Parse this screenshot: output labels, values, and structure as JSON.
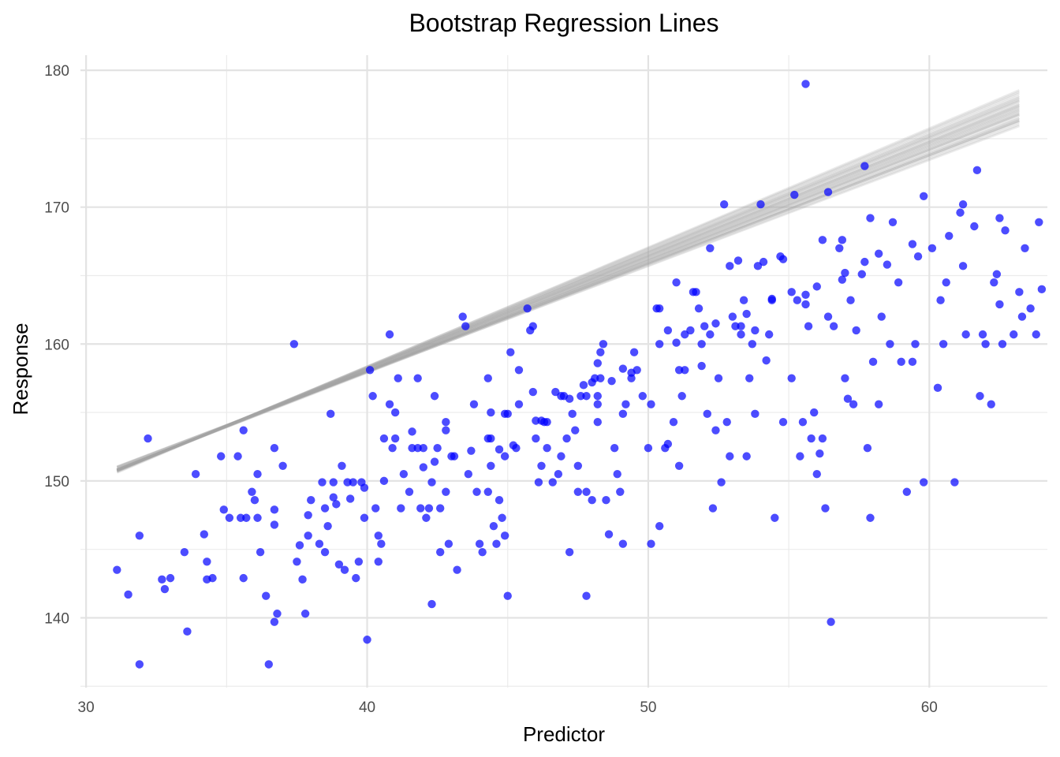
{
  "chart_data": {
    "type": "scatter",
    "title": "Bootstrap Regression Lines",
    "xlabel": "Predictor",
    "ylabel": "Response",
    "xlim": [
      29.8,
      64.2
    ],
    "ylim": [
      134.9,
      181.1
    ],
    "x_ticks": [
      30,
      40,
      50,
      60
    ],
    "y_ticks": [
      140,
      150,
      160,
      170,
      180
    ],
    "x_tick_labels": [
      "30",
      "40",
      "50",
      "60"
    ],
    "y_tick_labels": [
      "140",
      "150",
      "160",
      "170",
      "180"
    ],
    "grid": true,
    "point_color": "#0000ff",
    "line_color": "#a6a6a6",
    "points": [
      [
        31.1,
        143.5
      ],
      [
        31.5,
        141.7
      ],
      [
        31.9,
        146.0
      ],
      [
        31.9,
        136.6
      ],
      [
        32.2,
        153.1
      ],
      [
        32.7,
        142.8
      ],
      [
        32.8,
        142.1
      ],
      [
        33.0,
        142.9
      ],
      [
        33.5,
        144.8
      ],
      [
        33.6,
        139.0
      ],
      [
        33.9,
        150.5
      ],
      [
        34.2,
        146.1
      ],
      [
        34.3,
        144.1
      ],
      [
        34.3,
        142.8
      ],
      [
        34.5,
        142.9
      ],
      [
        34.8,
        151.8
      ],
      [
        34.9,
        147.9
      ],
      [
        35.1,
        147.3
      ],
      [
        35.4,
        151.8
      ],
      [
        35.5,
        147.3
      ],
      [
        35.6,
        153.7
      ],
      [
        35.6,
        142.9
      ],
      [
        35.7,
        147.3
      ],
      [
        35.9,
        149.2
      ],
      [
        36.0,
        148.6
      ],
      [
        36.1,
        150.5
      ],
      [
        36.1,
        147.3
      ],
      [
        36.2,
        144.8
      ],
      [
        36.4,
        141.6
      ],
      [
        36.5,
        136.6
      ],
      [
        36.7,
        147.9
      ],
      [
        36.7,
        152.4
      ],
      [
        36.7,
        139.7
      ],
      [
        36.8,
        140.3
      ],
      [
        37.0,
        151.1
      ],
      [
        37.4,
        160.0
      ],
      [
        37.5,
        144.1
      ],
      [
        37.7,
        142.8
      ],
      [
        37.8,
        140.3
      ],
      [
        37.9,
        146.0
      ],
      [
        38.0,
        148.6
      ],
      [
        38.3,
        145.4
      ],
      [
        38.4,
        149.9
      ],
      [
        38.5,
        144.8
      ],
      [
        38.6,
        146.7
      ],
      [
        38.7,
        154.9
      ],
      [
        38.8,
        149.9
      ],
      [
        38.8,
        148.8
      ],
      [
        39.0,
        143.9
      ],
      [
        39.1,
        151.1
      ],
      [
        39.2,
        143.5
      ],
      [
        39.3,
        149.9
      ],
      [
        39.5,
        149.9
      ],
      [
        39.6,
        142.9
      ],
      [
        39.7,
        144.1
      ],
      [
        39.8,
        149.9
      ],
      [
        39.9,
        147.3
      ],
      [
        40.0,
        138.4
      ],
      [
        40.1,
        158.1
      ],
      [
        40.2,
        156.2
      ],
      [
        40.3,
        148.0
      ],
      [
        40.4,
        146.0
      ],
      [
        40.4,
        144.1
      ],
      [
        40.5,
        145.4
      ],
      [
        40.6,
        153.1
      ],
      [
        40.8,
        155.6
      ],
      [
        40.8,
        160.7
      ],
      [
        41.0,
        155.0
      ],
      [
        41.0,
        153.1
      ],
      [
        41.1,
        157.5
      ],
      [
        41.2,
        148.0
      ],
      [
        41.5,
        149.2
      ],
      [
        41.6,
        153.6
      ],
      [
        41.8,
        157.5
      ],
      [
        41.9,
        148.0
      ],
      [
        42.0,
        152.4
      ],
      [
        42.1,
        147.3
      ],
      [
        42.2,
        148.0
      ],
      [
        42.3,
        149.9
      ],
      [
        42.3,
        141.0
      ],
      [
        42.4,
        156.2
      ],
      [
        42.5,
        152.4
      ],
      [
        42.6,
        144.8
      ],
      [
        42.6,
        148.0
      ],
      [
        42.8,
        154.3
      ],
      [
        42.8,
        153.7
      ],
      [
        42.8,
        149.2
      ],
      [
        42.9,
        145.4
      ],
      [
        43.2,
        143.5
      ],
      [
        43.4,
        162.0
      ],
      [
        43.5,
        161.3
      ],
      [
        43.6,
        150.5
      ],
      [
        43.8,
        155.6
      ],
      [
        43.9,
        149.2
      ],
      [
        44.0,
        145.4
      ],
      [
        44.1,
        144.8
      ],
      [
        44.3,
        157.5
      ],
      [
        44.3,
        153.1
      ],
      [
        44.3,
        149.2
      ],
      [
        44.4,
        151.1
      ],
      [
        44.5,
        146.7
      ],
      [
        44.6,
        145.4
      ],
      [
        44.7,
        148.6
      ],
      [
        44.8,
        147.3
      ],
      [
        44.9,
        151.8
      ],
      [
        44.9,
        146.0
      ],
      [
        45.0,
        141.6
      ],
      [
        45.1,
        159.4
      ],
      [
        45.3,
        152.4
      ],
      [
        45.4,
        158.1
      ],
      [
        45.4,
        155.6
      ],
      [
        45.7,
        162.6
      ],
      [
        45.8,
        161.0
      ],
      [
        45.9,
        161.3
      ],
      [
        46.0,
        153.1
      ],
      [
        46.1,
        149.9
      ],
      [
        46.2,
        151.1
      ],
      [
        46.4,
        152.4
      ],
      [
        46.4,
        154.3
      ],
      [
        46.6,
        149.9
      ],
      [
        46.8,
        150.5
      ],
      [
        46.9,
        151.8
      ],
      [
        47.0,
        156.2
      ],
      [
        47.1,
        153.1
      ],
      [
        47.2,
        144.8
      ],
      [
        47.3,
        154.9
      ],
      [
        47.4,
        153.7
      ],
      [
        47.5,
        151.1
      ],
      [
        47.5,
        149.2
      ],
      [
        47.6,
        156.2
      ],
      [
        47.8,
        156.2
      ],
      [
        47.8,
        149.2
      ],
      [
        47.8,
        141.6
      ],
      [
        48.0,
        148.6
      ],
      [
        48.1,
        157.5
      ],
      [
        48.2,
        155.6
      ],
      [
        48.2,
        154.3
      ],
      [
        48.2,
        156.2
      ],
      [
        48.3,
        157.5
      ],
      [
        48.3,
        159.4
      ],
      [
        48.4,
        160.0
      ],
      [
        48.5,
        148.6
      ],
      [
        48.6,
        146.1
      ],
      [
        48.8,
        152.4
      ],
      [
        48.9,
        150.5
      ],
      [
        49.0,
        149.2
      ],
      [
        49.1,
        145.4
      ],
      [
        49.1,
        154.9
      ],
      [
        49.2,
        155.6
      ],
      [
        49.4,
        157.5
      ],
      [
        49.5,
        159.4
      ],
      [
        49.6,
        158.1
      ],
      [
        49.8,
        156.2
      ],
      [
        50.0,
        152.4
      ],
      [
        50.1,
        145.4
      ],
      [
        50.1,
        155.6
      ],
      [
        50.3,
        162.6
      ],
      [
        50.4,
        162.6
      ],
      [
        50.4,
        146.7
      ],
      [
        50.6,
        152.4
      ],
      [
        50.7,
        152.7
      ],
      [
        50.9,
        154.3
      ],
      [
        51.0,
        164.5
      ],
      [
        51.1,
        158.1
      ],
      [
        51.1,
        151.1
      ],
      [
        51.2,
        156.2
      ],
      [
        51.3,
        158.1
      ],
      [
        51.5,
        161.0
      ],
      [
        51.6,
        163.8
      ],
      [
        51.7,
        163.8
      ],
      [
        51.8,
        162.6
      ],
      [
        51.9,
        160.0
      ],
      [
        51.9,
        158.4
      ],
      [
        52.0,
        161.3
      ],
      [
        52.1,
        154.9
      ],
      [
        52.2,
        167.0
      ],
      [
        52.2,
        160.7
      ],
      [
        52.3,
        148.0
      ],
      [
        52.4,
        153.7
      ],
      [
        52.5,
        157.5
      ],
      [
        52.6,
        149.9
      ],
      [
        52.7,
        170.2
      ],
      [
        52.8,
        154.3
      ],
      [
        52.9,
        165.7
      ],
      [
        52.9,
        151.8
      ],
      [
        53.1,
        161.3
      ],
      [
        53.2,
        166.1
      ],
      [
        53.3,
        160.7
      ],
      [
        53.3,
        161.3
      ],
      [
        53.4,
        163.2
      ],
      [
        53.5,
        151.8
      ],
      [
        53.6,
        157.5
      ],
      [
        53.7,
        160.0
      ],
      [
        53.8,
        161.0
      ],
      [
        53.8,
        154.9
      ],
      [
        53.9,
        165.7
      ],
      [
        54.0,
        170.2
      ],
      [
        54.1,
        166.0
      ],
      [
        54.2,
        158.8
      ],
      [
        54.3,
        160.7
      ],
      [
        54.4,
        163.2
      ],
      [
        54.5,
        147.3
      ],
      [
        54.7,
        166.4
      ],
      [
        54.8,
        154.3
      ],
      [
        55.1,
        157.5
      ],
      [
        55.3,
        163.2
      ],
      [
        55.4,
        151.8
      ],
      [
        55.5,
        154.3
      ],
      [
        55.6,
        162.9
      ],
      [
        55.7,
        161.3
      ],
      [
        55.8,
        153.1
      ],
      [
        55.9,
        155.0
      ],
      [
        56.0,
        150.5
      ],
      [
        56.1,
        152.0
      ],
      [
        56.2,
        153.1
      ],
      [
        56.3,
        148.0
      ],
      [
        56.4,
        162.0
      ],
      [
        56.5,
        139.7
      ],
      [
        56.6,
        161.3
      ],
      [
        56.8,
        167.0
      ],
      [
        56.9,
        167.6
      ],
      [
        57.0,
        157.5
      ],
      [
        57.1,
        156.0
      ],
      [
        57.2,
        163.2
      ],
      [
        57.3,
        155.6
      ],
      [
        57.4,
        161.0
      ],
      [
        57.6,
        165.1
      ],
      [
        57.7,
        173.0
      ],
      [
        57.8,
        152.4
      ],
      [
        57.9,
        147.3
      ],
      [
        58.0,
        158.7
      ],
      [
        58.2,
        155.6
      ],
      [
        58.3,
        162.0
      ],
      [
        58.6,
        160.0
      ],
      [
        58.9,
        164.5
      ],
      [
        59.0,
        158.7
      ],
      [
        59.2,
        149.2
      ],
      [
        59.4,
        158.7
      ],
      [
        59.6,
        166.4
      ],
      [
        59.8,
        149.9
      ],
      [
        60.1,
        167.0
      ],
      [
        60.3,
        156.8
      ],
      [
        60.4,
        163.2
      ],
      [
        60.6,
        164.5
      ],
      [
        60.9,
        149.9
      ],
      [
        61.1,
        169.6
      ],
      [
        61.2,
        170.2
      ],
      [
        61.3,
        160.7
      ],
      [
        61.8,
        156.2
      ],
      [
        61.9,
        160.7
      ],
      [
        62.0,
        160.0
      ],
      [
        62.2,
        155.6
      ],
      [
        62.3,
        164.5
      ],
      [
        62.4,
        165.1
      ],
      [
        62.6,
        160.0
      ],
      [
        62.7,
        168.3
      ],
      [
        63.0,
        160.7
      ],
      [
        63.3,
        162.0
      ],
      [
        63.4,
        167.0
      ],
      [
        63.6,
        162.6
      ],
      [
        63.8,
        160.7
      ],
      [
        63.9,
        168.9
      ],
      [
        64.0,
        164.0
      ]
    ],
    "extra_points": [
      [
        43.0,
        151.8
      ],
      [
        43.1,
        151.8
      ],
      [
        41.6,
        152.4
      ],
      [
        41.8,
        152.4
      ],
      [
        40.9,
        152.4
      ],
      [
        44.7,
        152.3
      ],
      [
        45.2,
        152.6
      ],
      [
        46.2,
        154.4
      ],
      [
        46.3,
        154.3
      ],
      [
        44.4,
        153.1
      ],
      [
        44.9,
        154.9
      ],
      [
        45.0,
        154.9
      ],
      [
        46.9,
        156.2
      ],
      [
        46.0,
        154.4
      ],
      [
        47.2,
        156.0
      ],
      [
        48.7,
        157.3
      ],
      [
        49.4,
        157.9
      ],
      [
        48.0,
        157.2
      ],
      [
        49.1,
        158.2
      ],
      [
        50.4,
        160.0
      ],
      [
        51.3,
        160.7
      ],
      [
        51.0,
        160.1
      ],
      [
        52.4,
        161.5
      ],
      [
        53.5,
        162.2
      ],
      [
        55.1,
        163.8
      ],
      [
        56.0,
        164.2
      ],
      [
        57.0,
        165.2
      ],
      [
        57.7,
        166.0
      ],
      [
        38.9,
        148.3
      ],
      [
        38.5,
        148.0
      ],
      [
        37.9,
        147.5
      ],
      [
        36.7,
        146.8
      ],
      [
        37.6,
        145.3
      ],
      [
        39.4,
        148.7
      ],
      [
        39.9,
        149.5
      ],
      [
        40.6,
        150.0
      ],
      [
        41.3,
        150.5
      ],
      [
        42.0,
        151.0
      ],
      [
        42.4,
        151.4
      ],
      [
        43.7,
        152.2
      ],
      [
        44.4,
        155.0
      ],
      [
        45.9,
        156.5
      ],
      [
        46.7,
        156.5
      ],
      [
        47.7,
        157.0
      ],
      [
        48.2,
        158.6
      ],
      [
        50.7,
        161.0
      ],
      [
        53.0,
        162.0
      ],
      [
        54.4,
        163.3
      ],
      [
        55.6,
        163.6
      ],
      [
        56.9,
        164.7
      ],
      [
        58.2,
        166.6
      ],
      [
        59.4,
        167.3
      ],
      [
        60.7,
        167.9
      ],
      [
        61.6,
        168.6
      ],
      [
        62.5,
        169.2
      ],
      [
        54.8,
        166.2
      ],
      [
        58.5,
        165.8
      ],
      [
        55.2,
        170.9
      ],
      [
        56.4,
        171.1
      ],
      [
        56.2,
        167.6
      ],
      [
        58.7,
        168.9
      ],
      [
        57.9,
        169.2
      ],
      [
        59.8,
        170.8
      ],
      [
        61.7,
        172.7
      ],
      [
        63.2,
        163.8
      ],
      [
        55.6,
        179.0
      ],
      [
        61.2,
        165.7
      ],
      [
        60.5,
        160.0
      ],
      [
        62.5,
        162.9
      ],
      [
        59.5,
        160.0
      ]
    ],
    "bootstrap_lines": [
      [
        0.805,
        125.82
      ],
      [
        0.84,
        124.65
      ],
      [
        0.79,
        126.4
      ],
      [
        0.775,
        126.95
      ],
      [
        0.86,
        123.95
      ],
      [
        0.82,
        125.3
      ],
      [
        0.81,
        125.6
      ],
      [
        0.85,
        124.3
      ],
      [
        0.83,
        124.95
      ],
      [
        0.795,
        126.1
      ],
      [
        0.815,
        125.45
      ],
      [
        0.8,
        125.95
      ],
      [
        0.845,
        124.45
      ],
      [
        0.825,
        125.15
      ],
      [
        0.785,
        126.6
      ],
      [
        0.835,
        124.8
      ],
      [
        0.87,
        123.55
      ],
      [
        0.78,
        126.75
      ],
      [
        0.855,
        124.1
      ],
      [
        0.812,
        125.55
      ],
      [
        0.828,
        125.05
      ],
      [
        0.798,
        126.05
      ],
      [
        0.842,
        124.55
      ],
      [
        0.818,
        125.35
      ],
      [
        0.808,
        125.7
      ],
      [
        0.865,
        123.75
      ],
      [
        0.788,
        126.5
      ],
      [
        0.833,
        124.85
      ],
      [
        0.822,
        125.25
      ],
      [
        0.848,
        124.35
      ]
    ]
  }
}
